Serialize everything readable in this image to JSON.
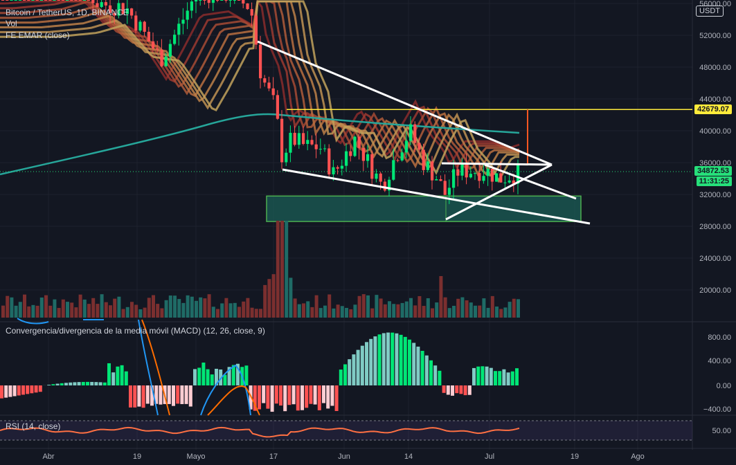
{
  "symbol_legend": "Bitcoin / TetherUS, 1D, BINANCE",
  "legend_vol": "Vol",
  "legend_ema": "FE EMAR (close)",
  "currency_badge": "USDT",
  "macd_legend": "Convergencia/divergencia de la media móvil (MACD) (12, 26, close, 9)",
  "rsi_legend": "RSI (14, close)",
  "price_axis": [
    "56000.00",
    "52000.00",
    "48000.00",
    "44000.00",
    "40000.00",
    "36000.00",
    "32000.00",
    "28000.00",
    "24000.00",
    "20000.00"
  ],
  "macd_axis": [
    "800.00",
    "400.00",
    "0.00",
    "−400.00"
  ],
  "rsi_axis": [
    "50.00"
  ],
  "time_axis": [
    "Abr",
    "19",
    "Mayo",
    "17",
    "Jun",
    "14",
    "Jul",
    "19",
    "Ago"
  ],
  "price_tags": {
    "level": "42679.07",
    "last": "34872.53",
    "countdown": "11:31:25"
  },
  "colors": {
    "bg": "#131722",
    "up": "#26a69a",
    "bull": "#00e676",
    "bear": "#ff5252",
    "ema200": "#26a69a",
    "level": "#ffeb3b",
    "lastTag": "#26e07a",
    "zone": "#1b5e56",
    "zoneBorder": "#4caf50",
    "trend": "#ffffff",
    "rsi": "#ff7043"
  },
  "chart_data": {
    "type": "candlestick",
    "series": [
      {
        "name": "Bitcoin / TetherUS",
        "kind": "candles"
      },
      {
        "name": "Vol",
        "kind": "volume"
      },
      {
        "name": "MACD",
        "kind": "histogram"
      },
      {
        "name": "RSI",
        "kind": "line"
      }
    ],
    "price_range": [
      16000,
      57000
    ],
    "horizontal_level": 42679.07,
    "last_price": 34872.53,
    "support_zone": [
      28600,
      31800
    ]
  }
}
